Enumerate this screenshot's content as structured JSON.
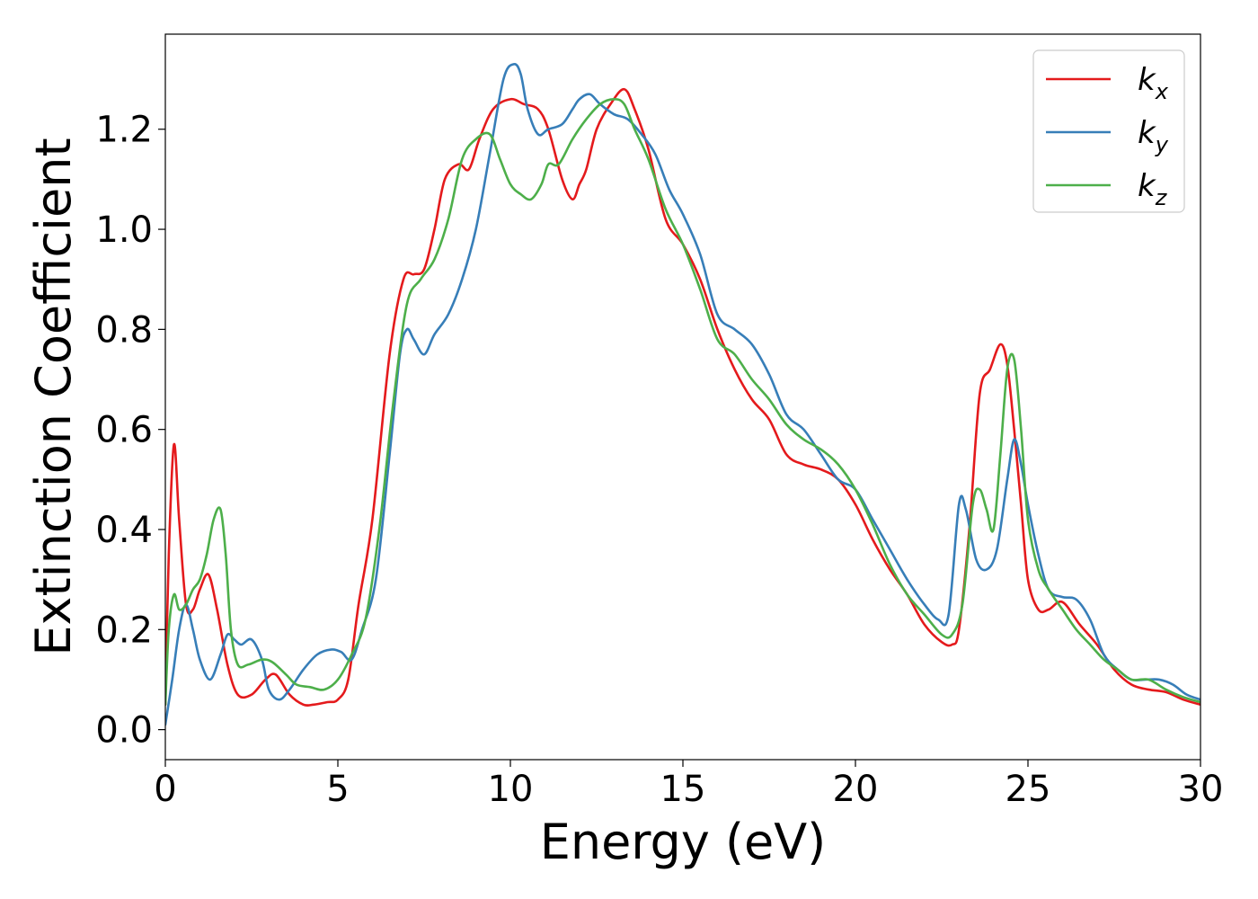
{
  "chart_data": {
    "type": "line",
    "title": "",
    "xlabel": "Energy (eV)",
    "ylabel": "Extinction Coefficient",
    "xlim": [
      0,
      30
    ],
    "ylim": [
      -0.06,
      1.39
    ],
    "xticks": [
      0,
      5,
      10,
      15,
      20,
      25,
      30
    ],
    "xtick_labels": [
      "0",
      "5",
      "10",
      "15",
      "20",
      "25",
      "30"
    ],
    "yticks": [
      0.0,
      0.2,
      0.4,
      0.6,
      0.8,
      1.0,
      1.2
    ],
    "ytick_labels": [
      "0.0",
      "0.2",
      "0.4",
      "0.6",
      "0.8",
      "1.0",
      "1.2"
    ],
    "grid": false,
    "legend_position": "top-right",
    "series": [
      {
        "name": "kx",
        "label_base": "k",
        "label_sub": "x",
        "color": "#e41a1c",
        "x": [
          0,
          0.1,
          0.25,
          0.4,
          0.6,
          0.8,
          1.0,
          1.25,
          1.5,
          1.8,
          2.1,
          2.5,
          2.9,
          3.2,
          3.6,
          4.0,
          4.3,
          4.7,
          5.0,
          5.3,
          5.6,
          6.0,
          6.5,
          6.9,
          7.2,
          7.5,
          7.8,
          8.1,
          8.5,
          8.8,
          9.1,
          9.5,
          10.0,
          10.4,
          10.8,
          11.1,
          11.5,
          11.8,
          12.0,
          12.2,
          12.5,
          12.9,
          13.3,
          13.6,
          14.0,
          14.5,
          15.0,
          15.5,
          16.0,
          16.5,
          17.0,
          17.5,
          18.0,
          18.5,
          19.0,
          19.5,
          20.0,
          20.5,
          21.0,
          21.5,
          22.0,
          22.5,
          22.8,
          23.0,
          23.3,
          23.6,
          23.9,
          24.2,
          24.4,
          24.6,
          24.8,
          25.0,
          25.3,
          25.6,
          26.0,
          26.5,
          27.0,
          27.5,
          28.0,
          28.5,
          29.0,
          29.5,
          30.0
        ],
        "y": [
          0.05,
          0.35,
          0.57,
          0.42,
          0.25,
          0.24,
          0.28,
          0.31,
          0.24,
          0.13,
          0.07,
          0.07,
          0.1,
          0.11,
          0.07,
          0.05,
          0.05,
          0.055,
          0.06,
          0.1,
          0.25,
          0.42,
          0.75,
          0.9,
          0.91,
          0.92,
          1.0,
          1.1,
          1.13,
          1.12,
          1.18,
          1.24,
          1.26,
          1.25,
          1.24,
          1.2,
          1.1,
          1.06,
          1.09,
          1.12,
          1.2,
          1.25,
          1.28,
          1.24,
          1.16,
          1.02,
          0.97,
          0.9,
          0.8,
          0.72,
          0.66,
          0.62,
          0.55,
          0.53,
          0.52,
          0.5,
          0.45,
          0.38,
          0.32,
          0.27,
          0.21,
          0.175,
          0.17,
          0.2,
          0.4,
          0.67,
          0.72,
          0.77,
          0.73,
          0.6,
          0.45,
          0.3,
          0.24,
          0.24,
          0.255,
          0.21,
          0.17,
          0.12,
          0.09,
          0.08,
          0.075,
          0.06,
          0.05
        ]
      },
      {
        "name": "ky",
        "label_base": "k",
        "label_sub": "y",
        "color": "#377eb8",
        "x": [
          0,
          0.2,
          0.4,
          0.6,
          0.8,
          1.0,
          1.3,
          1.6,
          1.8,
          2.0,
          2.2,
          2.5,
          2.8,
          3.0,
          3.3,
          3.6,
          4.0,
          4.4,
          4.8,
          5.1,
          5.4,
          5.7,
          6.1,
          6.5,
          6.8,
          7.0,
          7.2,
          7.5,
          7.8,
          8.2,
          8.6,
          9.0,
          9.4,
          9.8,
          10.1,
          10.3,
          10.5,
          10.8,
          11.1,
          11.5,
          11.8,
          12.0,
          12.3,
          12.6,
          13.0,
          13.4,
          13.8,
          14.2,
          14.6,
          15.0,
          15.5,
          16.0,
          16.5,
          17.0,
          17.5,
          18.0,
          18.5,
          19.0,
          19.5,
          20.0,
          20.5,
          21.0,
          21.5,
          22.0,
          22.4,
          22.7,
          23.0,
          23.2,
          23.5,
          23.8,
          24.1,
          24.4,
          24.6,
          24.8,
          25.0,
          25.3,
          25.6,
          26.0,
          26.4,
          26.8,
          27.2,
          27.6,
          28.0,
          28.4,
          28.8,
          29.2,
          29.6,
          30.0
        ],
        "y": [
          0.01,
          0.1,
          0.2,
          0.25,
          0.2,
          0.14,
          0.1,
          0.15,
          0.19,
          0.18,
          0.17,
          0.18,
          0.14,
          0.08,
          0.06,
          0.08,
          0.12,
          0.15,
          0.16,
          0.155,
          0.14,
          0.2,
          0.3,
          0.55,
          0.75,
          0.8,
          0.78,
          0.75,
          0.79,
          0.83,
          0.9,
          1.0,
          1.15,
          1.3,
          1.33,
          1.31,
          1.24,
          1.19,
          1.2,
          1.21,
          1.24,
          1.26,
          1.27,
          1.25,
          1.23,
          1.22,
          1.19,
          1.15,
          1.08,
          1.03,
          0.95,
          0.83,
          0.8,
          0.77,
          0.71,
          0.63,
          0.6,
          0.55,
          0.5,
          0.48,
          0.42,
          0.36,
          0.3,
          0.25,
          0.22,
          0.23,
          0.45,
          0.44,
          0.34,
          0.32,
          0.36,
          0.5,
          0.58,
          0.53,
          0.45,
          0.35,
          0.28,
          0.265,
          0.26,
          0.22,
          0.15,
          0.12,
          0.1,
          0.1,
          0.1,
          0.09,
          0.07,
          0.06
        ]
      },
      {
        "name": "kz",
        "label_base": "k",
        "label_sub": "z",
        "color": "#4daf4a",
        "x": [
          0,
          0.1,
          0.25,
          0.4,
          0.6,
          0.8,
          1.0,
          1.2,
          1.4,
          1.6,
          1.75,
          1.9,
          2.1,
          2.4,
          2.8,
          3.1,
          3.5,
          3.8,
          4.2,
          4.6,
          5.0,
          5.4,
          5.8,
          6.2,
          6.6,
          7.0,
          7.4,
          7.8,
          8.2,
          8.6,
          9.0,
          9.4,
          9.7,
          10.0,
          10.3,
          10.6,
          10.9,
          11.1,
          11.4,
          11.8,
          12.2,
          12.6,
          13.0,
          13.3,
          13.6,
          14.0,
          14.5,
          15.0,
          15.5,
          16.0,
          16.5,
          17.0,
          17.5,
          18.0,
          18.5,
          19.0,
          19.5,
          20.0,
          20.5,
          21.0,
          21.5,
          22.0,
          22.5,
          22.8,
          23.1,
          23.4,
          23.6,
          23.8,
          24.0,
          24.2,
          24.4,
          24.6,
          24.8,
          25.0,
          25.3,
          25.6,
          26.0,
          26.4,
          26.8,
          27.2,
          27.6,
          28.0,
          28.5,
          29.0,
          29.5,
          30.0
        ],
        "y": [
          0.05,
          0.2,
          0.27,
          0.24,
          0.25,
          0.28,
          0.3,
          0.35,
          0.42,
          0.44,
          0.35,
          0.2,
          0.13,
          0.13,
          0.14,
          0.135,
          0.11,
          0.09,
          0.085,
          0.08,
          0.1,
          0.15,
          0.22,
          0.4,
          0.65,
          0.85,
          0.9,
          0.94,
          1.02,
          1.14,
          1.18,
          1.19,
          1.14,
          1.09,
          1.07,
          1.06,
          1.09,
          1.13,
          1.13,
          1.18,
          1.22,
          1.25,
          1.26,
          1.25,
          1.2,
          1.14,
          1.04,
          0.97,
          0.88,
          0.78,
          0.75,
          0.7,
          0.66,
          0.61,
          0.58,
          0.56,
          0.53,
          0.48,
          0.41,
          0.33,
          0.27,
          0.23,
          0.19,
          0.19,
          0.25,
          0.45,
          0.48,
          0.44,
          0.4,
          0.55,
          0.72,
          0.74,
          0.6,
          0.42,
          0.32,
          0.28,
          0.24,
          0.2,
          0.17,
          0.14,
          0.12,
          0.1,
          0.1,
          0.08,
          0.065,
          0.055
        ]
      }
    ]
  }
}
